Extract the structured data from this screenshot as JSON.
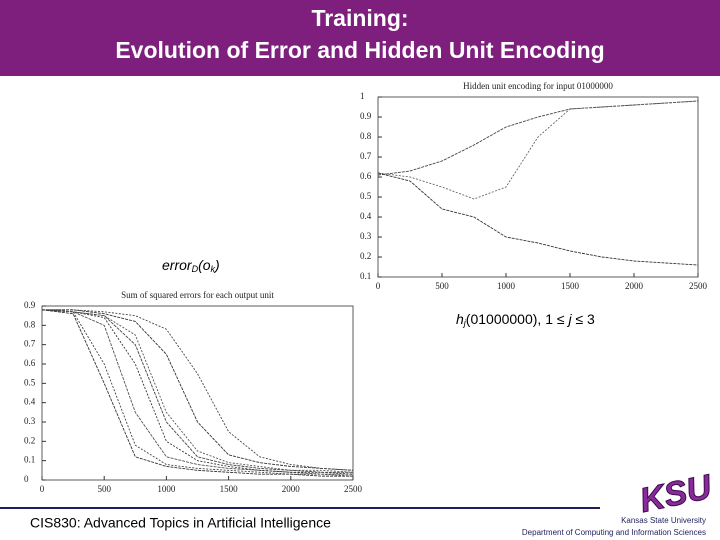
{
  "header": {
    "title_line1": "Training:",
    "title_line2": "Evolution of Error and Hidden Unit Encoding"
  },
  "labels": {
    "error_main": "error",
    "error_sub_d": "D",
    "error_paren": "(o",
    "error_sub_k": "k",
    "error_close": ")",
    "h_main": "h",
    "h_sub": "j",
    "h_rest": "(01000000), 1 ≤ ",
    "h_j": "j",
    "h_end": " ≤ 3"
  },
  "footer": {
    "course": "CIS830: Advanced Topics in Artificial Intelligence",
    "university": "Kansas State University",
    "department": "Department of Computing and Information Sciences",
    "logo": "KSU"
  },
  "chart_data": [
    {
      "type": "line",
      "title": "Hidden unit encoding for input 01000000",
      "x": [
        0,
        250,
        500,
        750,
        1000,
        1250,
        1500,
        1750,
        2000,
        2250,
        2500
      ],
      "xlim": [
        0,
        2500
      ],
      "xticks": [
        0,
        500,
        1000,
        1500,
        2000,
        2500
      ],
      "ylim": [
        0.1,
        1
      ],
      "yticks": [
        0.1,
        0.2,
        0.3,
        0.4,
        0.5,
        0.6,
        0.7,
        0.8,
        0.9,
        1
      ],
      "series": [
        {
          "color": "#444444",
          "values": [
            0.61,
            0.63,
            0.68,
            0.76,
            0.85,
            0.9,
            0.94,
            0.95,
            0.96,
            0.97,
            0.98
          ]
        },
        {
          "color": "#666666",
          "values": [
            0.62,
            0.6,
            0.55,
            0.49,
            0.55,
            0.8,
            0.94,
            0.95,
            0.96,
            0.97,
            0.98
          ]
        },
        {
          "color": "#333333",
          "values": [
            0.62,
            0.58,
            0.44,
            0.4,
            0.3,
            0.27,
            0.23,
            0.2,
            0.18,
            0.17,
            0.16
          ]
        }
      ]
    },
    {
      "type": "line",
      "title": "Sum of squared errors for each output unit",
      "x": [
        0,
        250,
        500,
        750,
        1000,
        1250,
        1500,
        1750,
        2000,
        2250,
        2500
      ],
      "xlim": [
        0,
        2500
      ],
      "xticks": [
        0,
        500,
        1000,
        1500,
        2000,
        2500
      ],
      "ylim": [
        0,
        0.9
      ],
      "yticks": [
        0,
        0.1,
        0.2,
        0.3,
        0.4,
        0.5,
        0.6,
        0.7,
        0.8,
        0.9
      ],
      "series": [
        {
          "color": "#333333",
          "values": [
            0.88,
            0.86,
            0.5,
            0.12,
            0.07,
            0.05,
            0.04,
            0.03,
            0.03,
            0.02,
            0.02
          ]
        },
        {
          "color": "#444444",
          "values": [
            0.88,
            0.87,
            0.6,
            0.18,
            0.08,
            0.06,
            0.05,
            0.04,
            0.03,
            0.03,
            0.02
          ]
        },
        {
          "color": "#555555",
          "values": [
            0.88,
            0.87,
            0.8,
            0.35,
            0.12,
            0.08,
            0.06,
            0.05,
            0.04,
            0.03,
            0.03
          ]
        },
        {
          "color": "#333333",
          "values": [
            0.88,
            0.87,
            0.84,
            0.6,
            0.2,
            0.1,
            0.07,
            0.05,
            0.04,
            0.04,
            0.03
          ]
        },
        {
          "color": "#444444",
          "values": [
            0.88,
            0.87,
            0.85,
            0.7,
            0.3,
            0.12,
            0.08,
            0.06,
            0.05,
            0.04,
            0.04
          ]
        },
        {
          "color": "#555555",
          "values": [
            0.88,
            0.87,
            0.85,
            0.75,
            0.35,
            0.15,
            0.09,
            0.07,
            0.05,
            0.05,
            0.04
          ]
        },
        {
          "color": "#333333",
          "values": [
            0.88,
            0.88,
            0.86,
            0.82,
            0.65,
            0.3,
            0.13,
            0.09,
            0.07,
            0.06,
            0.05
          ]
        },
        {
          "color": "#444444",
          "values": [
            0.88,
            0.88,
            0.87,
            0.85,
            0.78,
            0.55,
            0.25,
            0.12,
            0.08,
            0.06,
            0.05
          ]
        }
      ]
    }
  ]
}
